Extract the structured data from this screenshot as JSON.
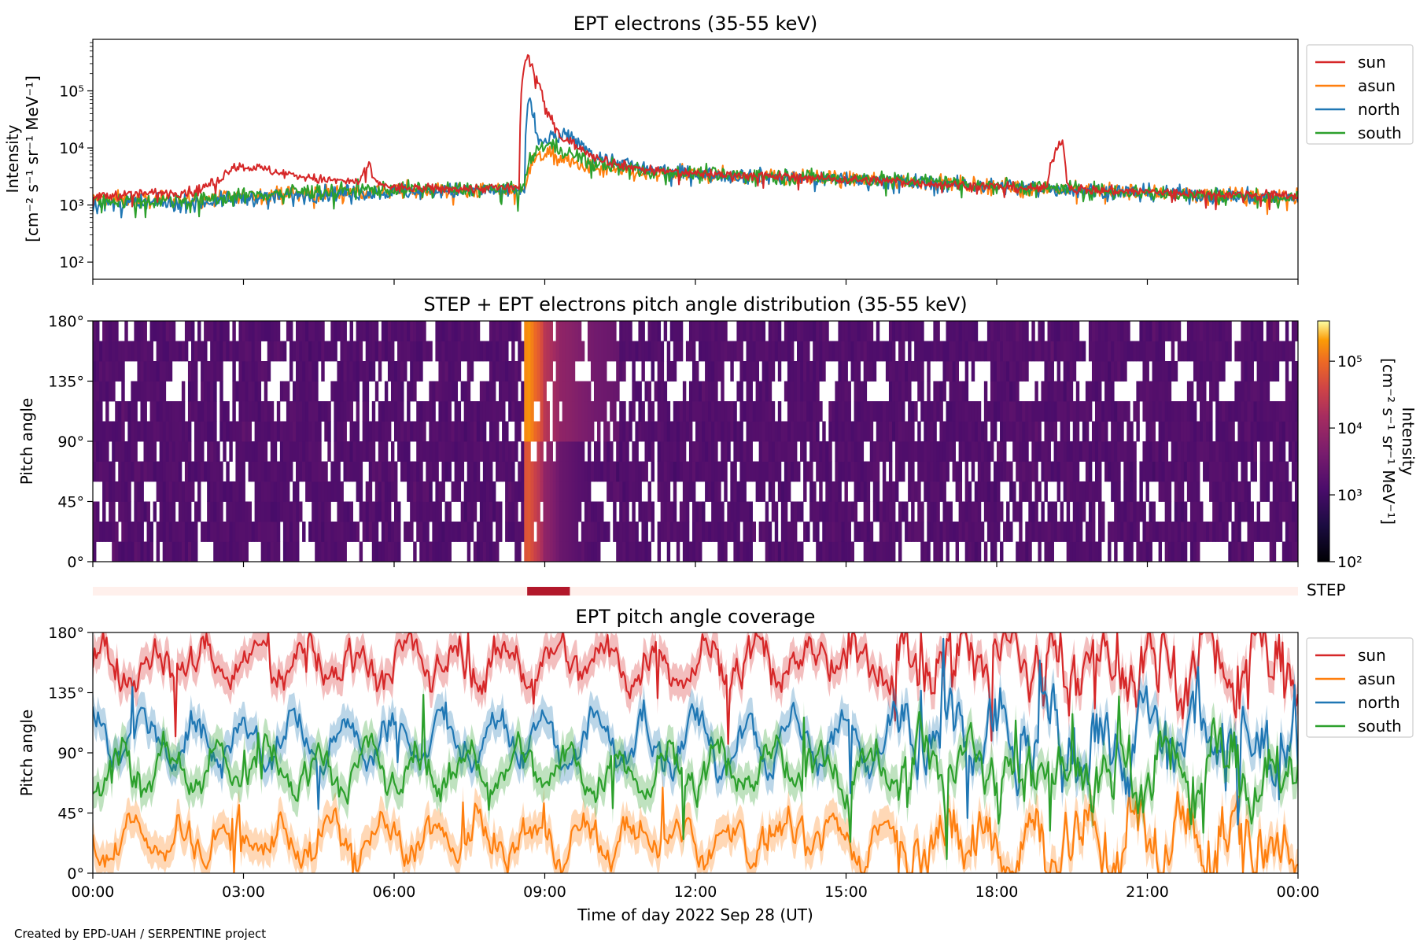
{
  "footer": "Created by EPD-UAH / SERPENTINE project",
  "colors": {
    "sun": "#d62728",
    "asun": "#ff7f0e",
    "north": "#1f77b4",
    "south": "#2ca02c",
    "step_bar": "#b2182b",
    "step_track": "#fff0ec"
  },
  "chart_data": [
    {
      "type": "line",
      "title": "EPT electrons (35-55 keV)",
      "xlabel": "",
      "ylabel_line1": "Intensity",
      "ylabel_line2": "[cm⁻² s⁻¹ sr⁻¹ MeV⁻¹]",
      "yscale": "log",
      "ylim": [
        50,
        800000
      ],
      "yticks": [
        100,
        1000,
        10000,
        100000
      ],
      "ytick_labels": [
        "10²",
        "10³",
        "10⁴",
        "10⁵"
      ],
      "xlim": [
        0,
        24
      ],
      "legend_position": "outside top-right",
      "series": [
        {
          "name": "sun",
          "x": [
            0,
            1,
            2,
            2.5,
            2.8,
            3.2,
            3.7,
            4.5,
            5.3,
            5.5,
            5.6,
            6,
            7,
            8,
            8.5,
            8.65,
            8.8,
            9.0,
            9.3,
            9.7,
            10,
            10.5,
            11,
            12,
            13,
            14,
            15,
            16,
            17,
            18,
            19,
            19.3,
            19.4,
            19.6,
            20,
            21,
            22,
            23,
            24
          ],
          "y": [
            1400,
            1600,
            1700,
            2600,
            4800,
            4600,
            3700,
            2800,
            2500,
            5200,
            2500,
            2000,
            1900,
            2000,
            2000,
            400000,
            200000,
            45000,
            16000,
            10000,
            7000,
            5000,
            4200,
            3600,
            3300,
            3100,
            2800,
            2600,
            2300,
            2100,
            1900,
            14000,
            2200,
            1900,
            1800,
            1700,
            1600,
            1500,
            1500
          ]
        },
        {
          "name": "asun",
          "x": [
            0,
            2,
            4,
            6,
            8,
            8.6,
            8.7,
            9,
            9.5,
            10,
            11,
            12,
            14,
            16,
            18,
            20,
            22,
            24
          ],
          "y": [
            1300,
            1200,
            1600,
            1800,
            1800,
            1800,
            5000,
            8000,
            5500,
            4200,
            3500,
            3400,
            3000,
            2700,
            2100,
            1800,
            1500,
            1400
          ]
        },
        {
          "name": "north",
          "x": [
            0,
            2,
            4,
            6,
            8,
            8.6,
            8.68,
            8.85,
            9.2,
            9.5,
            10,
            11,
            12,
            14,
            16,
            18,
            20,
            22,
            24
          ],
          "y": [
            1000,
            1100,
            1500,
            1700,
            1800,
            1800,
            70000,
            12000,
            16000,
            15000,
            7000,
            4200,
            3500,
            3000,
            2600,
            2100,
            1800,
            1500,
            1300
          ]
        },
        {
          "name": "south",
          "x": [
            0,
            2,
            4,
            6,
            8,
            8.6,
            8.7,
            9,
            9.5,
            10,
            11,
            12,
            14,
            16,
            18,
            20,
            22,
            24
          ],
          "y": [
            1200,
            1200,
            1700,
            1900,
            1900,
            1900,
            6000,
            12000,
            8000,
            5200,
            4000,
            3500,
            3100,
            2800,
            2200,
            1800,
            1500,
            1300
          ]
        }
      ]
    },
    {
      "type": "heatmap",
      "title": "STEP + EPT electrons pitch angle distribution (35-55 keV)",
      "ylabel": "Pitch angle",
      "ylim": [
        0,
        180
      ],
      "yticks": [
        0,
        45,
        90,
        135,
        180
      ],
      "ytick_labels": [
        "0°",
        "45°",
        "90°",
        "135°",
        "180°"
      ],
      "xlim": [
        0,
        24
      ],
      "colorbar": {
        "label_line1": "Intensity",
        "label_line2": "[cm⁻² s⁻¹ sr⁻¹ MeV⁻¹]",
        "scale": "log",
        "range": [
          100,
          400000
        ],
        "ticks": [
          100,
          1000,
          10000,
          100000
        ],
        "tick_labels": [
          "10²",
          "10³",
          "10⁴",
          "10⁵"
        ],
        "colormap": "inferno"
      },
      "features": {
        "background_intensity": 1500,
        "event_peak_intensity": 300000,
        "event_onset_hour": 8.65,
        "event_peak_pitch_range": [
          90,
          180
        ],
        "coverage_gap_cycle_hours": 1.0
      }
    },
    {
      "type": "bar",
      "label": "STEP",
      "coverage_intervals_hours": [
        [
          8.65,
          9.5
        ]
      ],
      "xlim": [
        0,
        24
      ]
    },
    {
      "type": "line",
      "title": "EPT pitch angle coverage",
      "xlabel": "Time of day 2022 Sep 28 (UT)",
      "ylabel": "Pitch angle",
      "ylim": [
        0,
        180
      ],
      "yticks": [
        0,
        45,
        90,
        135,
        180
      ],
      "ytick_labels": [
        "0°",
        "45°",
        "90°",
        "135°",
        "180°"
      ],
      "xlim": [
        0,
        24
      ],
      "xticks": [
        0,
        3,
        6,
        9,
        12,
        15,
        18,
        21,
        24
      ],
      "xtick_labels": [
        "00:00",
        "03:00",
        "06:00",
        "09:00",
        "12:00",
        "15:00",
        "18:00",
        "21:00",
        "00:00"
      ],
      "legend_position": "outside top-right",
      "band_halfwidth_deg": 12,
      "series": [
        {
          "name": "sun",
          "mean": 158,
          "amplitude": 12,
          "period_hours": 1.0,
          "phase": 0.0,
          "noise": 16,
          "noise_after_16h": 34
        },
        {
          "name": "asun",
          "mean": 25,
          "amplitude": 12,
          "period_hours": 1.0,
          "phase": 3.14,
          "noise": 14,
          "noise_after_16h": 30
        },
        {
          "name": "north",
          "mean": 100,
          "amplitude": 18,
          "period_hours": 1.0,
          "phase": 1.57,
          "noise": 14,
          "noise_after_16h": 30
        },
        {
          "name": "south",
          "mean": 78,
          "amplitude": 16,
          "period_hours": 1.0,
          "phase": 4.71,
          "noise": 14,
          "noise_after_16h": 30
        }
      ]
    }
  ]
}
